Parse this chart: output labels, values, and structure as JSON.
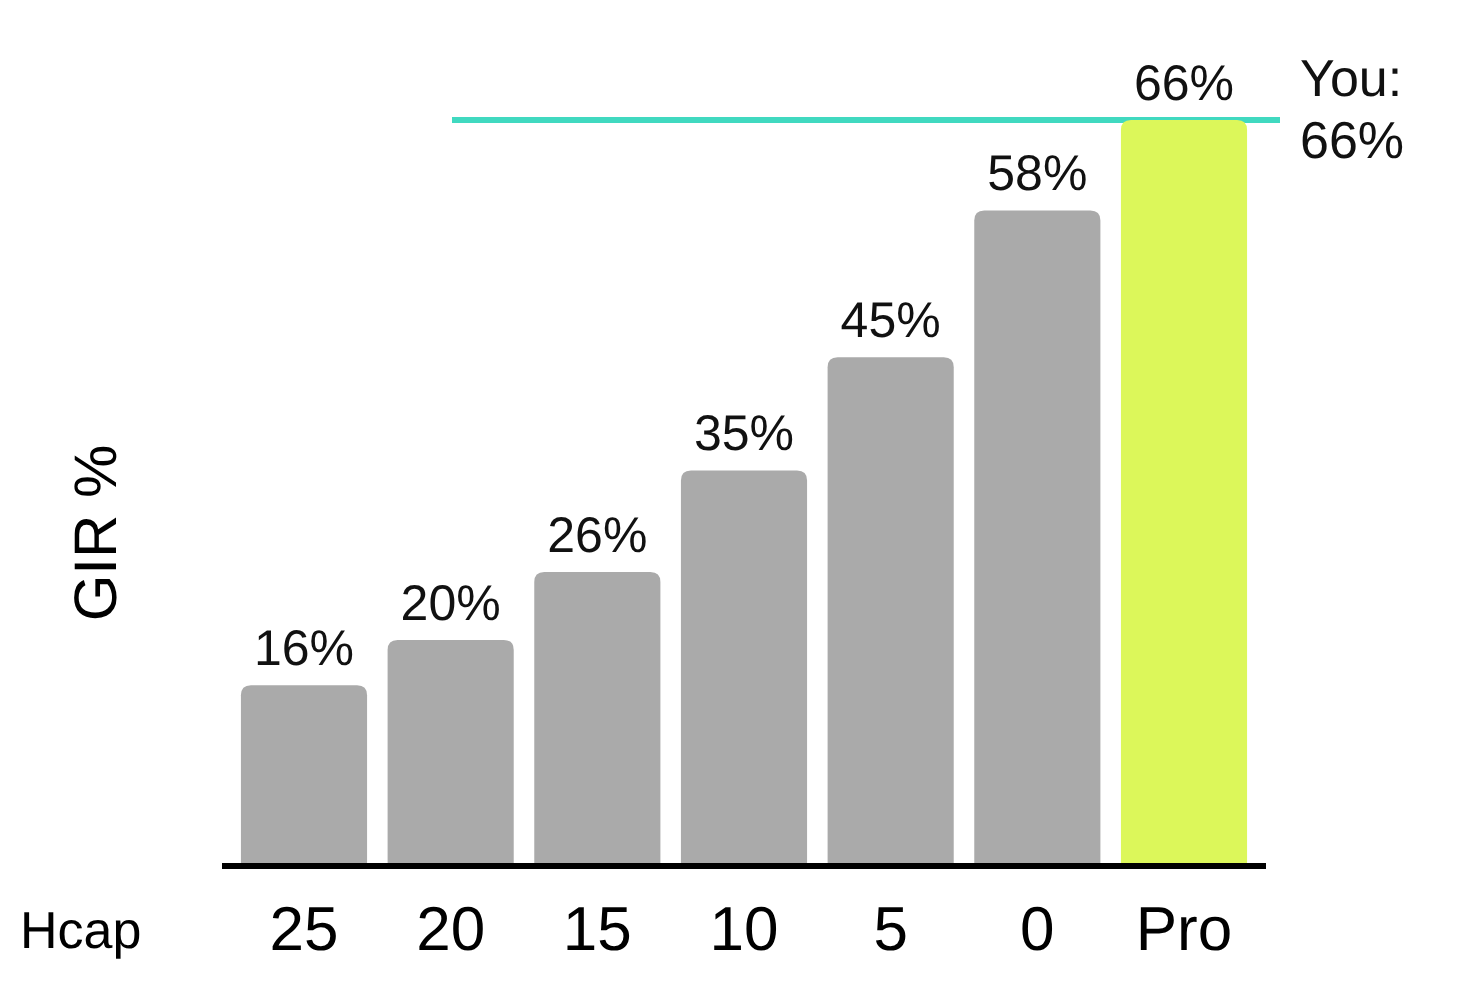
{
  "chart_data": {
    "type": "bar",
    "xlabel": "Hcap",
    "ylabel": "GIR %",
    "categories": [
      "25",
      "20",
      "15",
      "10",
      "5",
      "0",
      "Pro"
    ],
    "values": [
      16,
      20,
      26,
      35,
      45,
      58,
      66
    ],
    "colors": [
      "#aaaaaa",
      "#aaaaaa",
      "#aaaaaa",
      "#aaaaaa",
      "#aaaaaa",
      "#aaaaaa",
      "#dcf75a"
    ],
    "value_labels": [
      "16%",
      "20%",
      "26%",
      "35%",
      "45%",
      "58%",
      "66%"
    ],
    "ref_lines": [
      {
        "axis": "y",
        "value": 66,
        "label": "You: 66%",
        "color": "#40d9c0"
      }
    ]
  }
}
